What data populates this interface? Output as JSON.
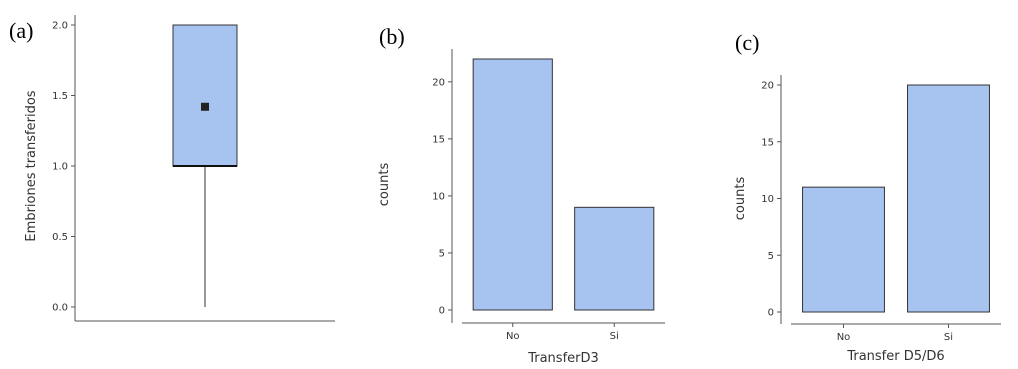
{
  "panels": [
    {
      "label": "(a)"
    },
    {
      "label": "(b)"
    },
    {
      "label": "(c)"
    }
  ],
  "colors": {
    "fill": "#a7c4f0",
    "stroke": "#333333",
    "axis": "#555555",
    "text": "#333333",
    "marker": "#222222"
  },
  "chart_data": [
    {
      "type": "box",
      "ylabel": "Embriones transferidos",
      "xlabel": "",
      "ylim": [
        0,
        2
      ],
      "yticks": [
        0.0,
        0.5,
        1.0,
        1.5,
        2.0
      ],
      "ytick_labels": [
        "0.0",
        "0.5",
        "1.0",
        "1.5",
        "2.0"
      ],
      "box": {
        "min": 0,
        "q1": 1,
        "median": 1,
        "q3": 2,
        "max": 2,
        "mean": 1.42
      },
      "grid": false,
      "legend": "none"
    },
    {
      "type": "bar",
      "xlabel": "TransferD3",
      "ylabel": "counts",
      "categories": [
        "No",
        "Si"
      ],
      "values": [
        22,
        9
      ],
      "ylim": [
        0,
        22
      ],
      "yticks": [
        0,
        5,
        10,
        15,
        20
      ],
      "ytick_labels": [
        "0",
        "5",
        "10",
        "15",
        "20"
      ],
      "grid": false,
      "legend": "none"
    },
    {
      "type": "bar",
      "xlabel": "Transfer D5/D6",
      "ylabel": "counts",
      "categories": [
        "No",
        "Si"
      ],
      "values": [
        11,
        20
      ],
      "ylim": [
        0,
        20
      ],
      "yticks": [
        0,
        5,
        10,
        15,
        20
      ],
      "ytick_labels": [
        "0",
        "5",
        "10",
        "15",
        "20"
      ],
      "grid": false,
      "legend": "none"
    }
  ]
}
